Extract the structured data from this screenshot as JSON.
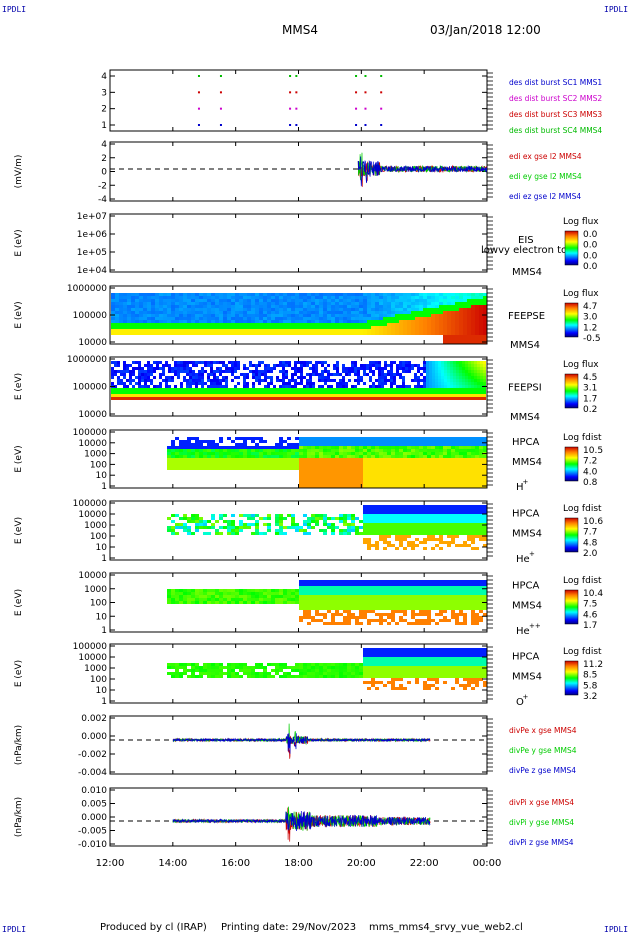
{
  "corner_tag": "IPDLI",
  "header": {
    "spacecraft": "MMS4",
    "datetime": "03/Jan/2018 12:00"
  },
  "footer": {
    "producer": "Produced by cl (IRAP)",
    "printing": "Printing date: 29/Nov/2023",
    "script": "mms_mms4_srvy_vue_web2.cl"
  },
  "time_axis": {
    "ticks": [
      "12:00",
      "14:00",
      "16:00",
      "18:00",
      "20:00",
      "22:00",
      "00:00"
    ],
    "hours": [
      12,
      14,
      16,
      18,
      20,
      22,
      24
    ]
  },
  "colors": {
    "mms1": "#0000cc",
    "mms2": "#cc00cc",
    "mms3": "#cc0000",
    "mms4": "#00bb00",
    "x": "#cc0000",
    "y": "#00cc00",
    "z": "#0000cc"
  },
  "chart_data": [
    {
      "type": "scatter",
      "id": "burst",
      "yticks": [
        "4",
        "3",
        "2",
        "1"
      ],
      "legend": [
        "des dist burst SC1 MMS1",
        "des dist burst SC2 MMS2",
        "des dist burst SC3 MMS3",
        "des dist burst SC4 MMS4"
      ],
      "burst_hours": [
        14.8,
        15.5,
        17.7,
        17.9,
        19.8,
        20.1,
        20.6
      ]
    },
    {
      "type": "line",
      "id": "edi",
      "ylabel": "(mV/m)",
      "yticks": [
        "4",
        "2",
        "0",
        "-2",
        "-4"
      ],
      "ylim": [
        -5,
        4
      ],
      "data_range_hours": [
        19.9,
        24.0
      ],
      "legend": [
        "edi ex gse l2 MMS4",
        "edi ey gse l2 MMS4",
        "edi ez gse l2 MMS4"
      ]
    },
    {
      "type": "heatmap",
      "id": "eis",
      "ylabel": "E (eV)",
      "yticks": [
        "1e+07",
        "1e+06",
        "1e+05",
        "1e+04"
      ],
      "label_lines": [
        "EIS",
        "MMS4"
      ],
      "overlay_text": "lowvy electron tof",
      "colorbar": {
        "title": "Log flux",
        "ticks": [
          "0.0",
          "0.0",
          "0.0",
          "0.0"
        ]
      }
    },
    {
      "type": "heatmap",
      "id": "feepse",
      "ylabel": "E (eV)",
      "yticks": [
        "1000000",
        "100000",
        "10000"
      ],
      "label_lines": [
        "FEEPSE",
        "MMS4"
      ],
      "colorbar": {
        "title": "Log flux",
        "ticks": [
          "4.7",
          "3.0",
          "1.2",
          "-0.5"
        ]
      }
    },
    {
      "type": "heatmap",
      "id": "feepsi",
      "ylabel": "E (eV)",
      "yticks": [
        "1000000",
        "100000",
        "10000"
      ],
      "label_lines": [
        "FEEPSI",
        "MMS4"
      ],
      "colorbar": {
        "title": "Log flux",
        "ticks": [
          "4.5",
          "3.1",
          "1.7",
          "0.2"
        ]
      }
    },
    {
      "type": "heatmap",
      "id": "hpca_h",
      "ylabel": "E (eV)",
      "yticks": [
        "100000",
        "10000",
        "1000",
        "100",
        "10",
        "1"
      ],
      "label_lines": [
        "HPCA",
        "MMS4"
      ],
      "species": "H",
      "charge": "+",
      "colorbar": {
        "title": "Log fdist",
        "ticks": [
          "10.5",
          "7.2",
          "4.0",
          "0.8"
        ]
      }
    },
    {
      "type": "heatmap",
      "id": "hpca_he1",
      "ylabel": "E (eV)",
      "yticks": [
        "100000",
        "10000",
        "1000",
        "100",
        "10",
        "1"
      ],
      "label_lines": [
        "HPCA",
        "MMS4"
      ],
      "species": "He",
      "charge": "+",
      "colorbar": {
        "title": "Log fdist",
        "ticks": [
          "10.6",
          "7.7",
          "4.8",
          "2.0"
        ]
      }
    },
    {
      "type": "heatmap",
      "id": "hpca_he2",
      "ylabel": "E (eV)",
      "yticks": [
        "10000",
        "1000",
        "100",
        "10",
        "1"
      ],
      "label_lines": [
        "HPCA",
        "MMS4"
      ],
      "species": "He",
      "charge": "++",
      "colorbar": {
        "title": "Log fdist",
        "ticks": [
          "10.4",
          "7.5",
          "4.6",
          "1.7"
        ]
      }
    },
    {
      "type": "heatmap",
      "id": "hpca_o",
      "ylabel": "E (eV)",
      "yticks": [
        "100000",
        "10000",
        "1000",
        "100",
        "10",
        "1"
      ],
      "label_lines": [
        "HPCA",
        "MMS4"
      ],
      "species": "O",
      "charge": "+",
      "colorbar": {
        "title": "Log fdist",
        "ticks": [
          "11.2",
          "8.5",
          "5.8",
          "3.2"
        ]
      }
    },
    {
      "type": "line",
      "id": "divpe",
      "ylabel": "(nPa/km)",
      "yticks": [
        "0.002",
        "0.000",
        "-0.002",
        "-0.004"
      ],
      "ylim": [
        -0.005,
        0.003
      ],
      "data_range_hours": [
        14.0,
        22.2
      ],
      "legend": [
        "divPe x gse MMS4",
        "divPe y gse MMS4",
        "divPe z gse MMS4"
      ]
    },
    {
      "type": "line",
      "id": "divpi",
      "ylabel": "(nPa/km)",
      "yticks": [
        "0.010",
        "0.005",
        "0.000",
        "-0.005",
        "-0.010"
      ],
      "ylim": [
        -0.012,
        0.012
      ],
      "data_range_hours": [
        14.0,
        22.2
      ],
      "legend": [
        "divPi x gse MMS4",
        "divPi y gse MMS4",
        "divPi z gse MMS4"
      ]
    }
  ]
}
